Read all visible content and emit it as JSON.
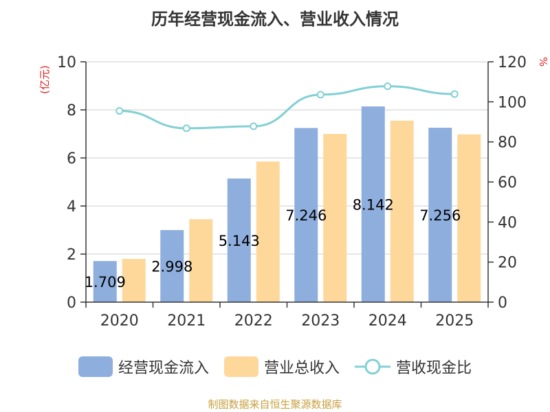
{
  "chart_data": {
    "type": "bar",
    "title": "历年经营现金流入、营业收入情况",
    "categories": [
      "2020",
      "2021",
      "2022",
      "2023",
      "2024",
      "2025"
    ],
    "series": [
      {
        "name": "经营现金流入",
        "kind": "bar",
        "axis": "left",
        "color": "#8eaede",
        "values": [
          1.709,
          2.998,
          5.143,
          7.246,
          8.142,
          7.256
        ]
      },
      {
        "name": "营业总收入",
        "kind": "bar",
        "axis": "left",
        "color": "#fdd89a",
        "values": [
          1.8,
          3.45,
          5.85,
          7.0,
          7.55,
          6.98
        ]
      },
      {
        "name": "营收现金比",
        "kind": "line",
        "axis": "right",
        "color": "#82d0d4",
        "values": [
          95.5,
          86.8,
          87.8,
          103.6,
          107.8,
          103.9
        ]
      }
    ],
    "data_labels": [
      "1.709",
      "2.998",
      "5.143",
      "7.246",
      "8.142",
      "7.256"
    ],
    "left_axis": {
      "label": "(亿元)",
      "min": 0,
      "max": 10,
      "ticks": [
        0,
        2,
        4,
        6,
        8,
        10
      ]
    },
    "right_axis": {
      "label": "%",
      "min": 0,
      "max": 120,
      "ticks": [
        0,
        20,
        40,
        60,
        80,
        100,
        120
      ]
    },
    "grid": true,
    "legend_position": "bottom",
    "source": "制图数据来自恒生聚源数据库"
  }
}
